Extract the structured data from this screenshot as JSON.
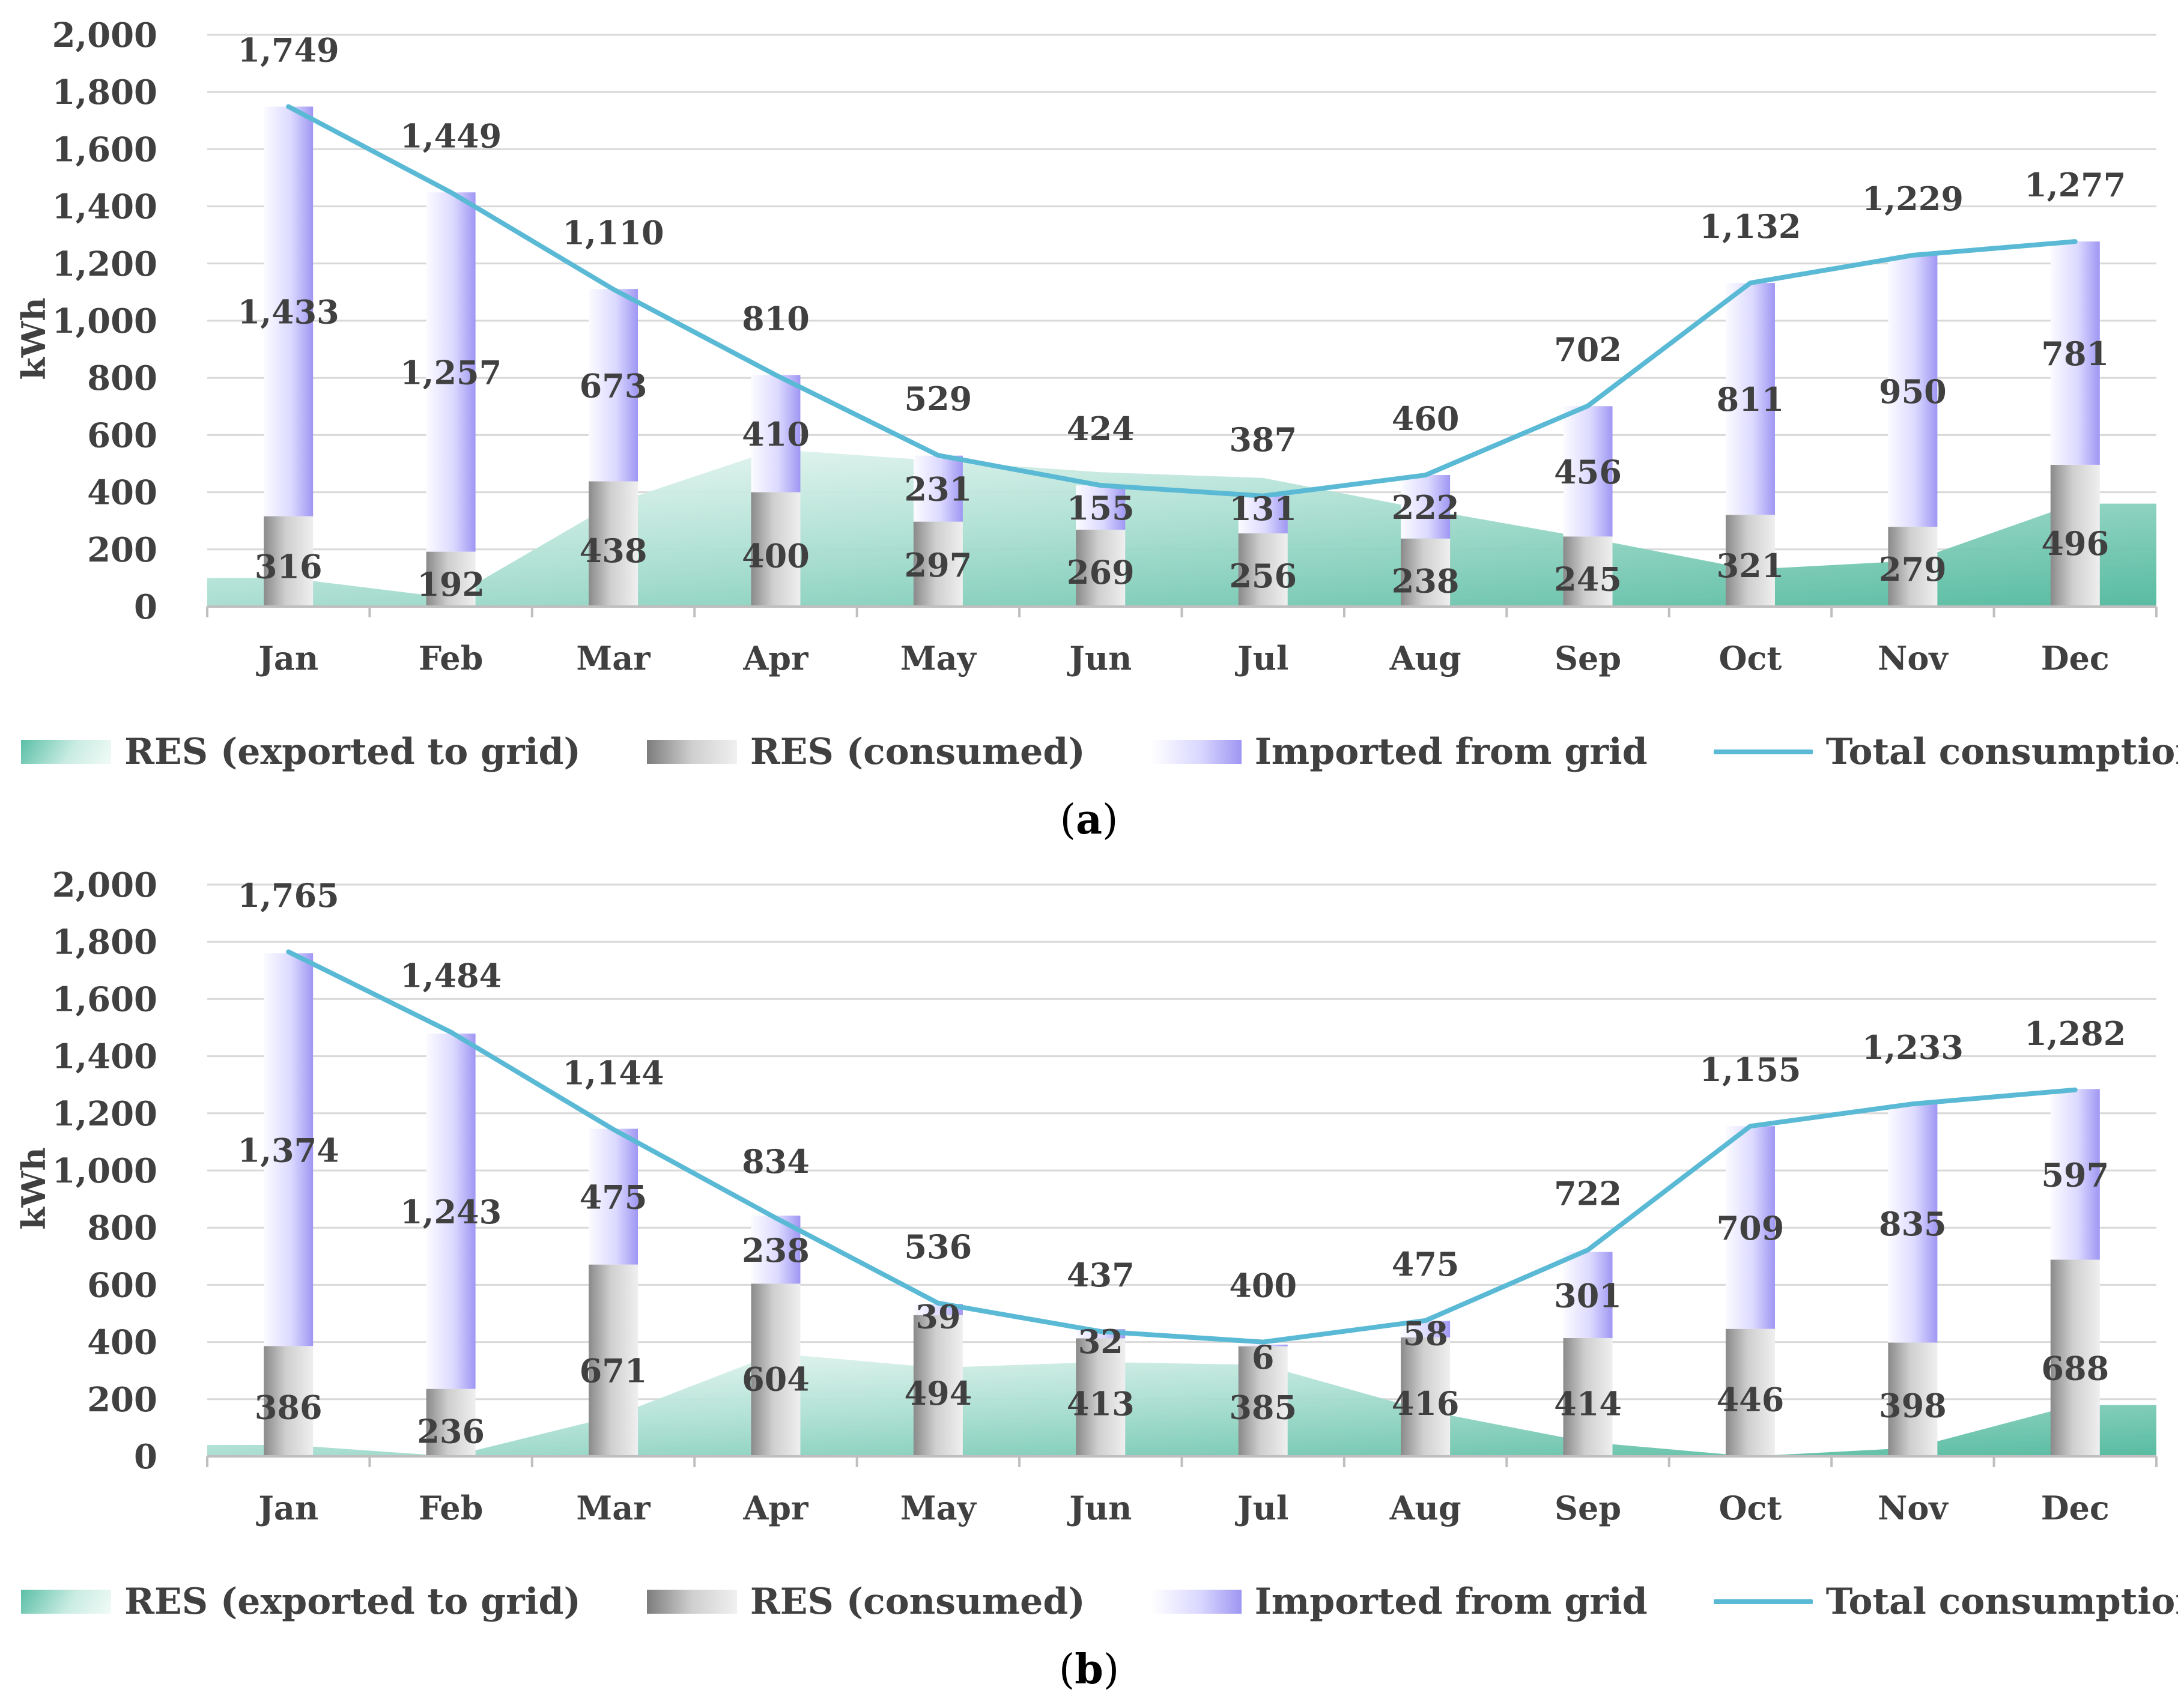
{
  "chart_data": [
    {
      "type": "bar",
      "panel": "(a)",
      "ylabel": "kWh",
      "ylim": [
        0,
        2000
      ],
      "ytick_labels": [
        "0",
        "200",
        "400",
        "600",
        "800",
        "1,000",
        "1,200",
        "1,400",
        "1,600",
        "1,800",
        "2,000"
      ],
      "categories": [
        "Jan",
        "Feb",
        "Mar",
        "Apr",
        "May",
        "Jun",
        "Jul",
        "Aug",
        "Sep",
        "Oct",
        "Nov",
        "Dec"
      ],
      "series": [
        {
          "name": "RES (exported to grid)",
          "kind": "area",
          "values": [
            100,
            30,
            360,
            550,
            510,
            470,
            450,
            340,
            240,
            130,
            160,
            360
          ]
        },
        {
          "name": "RES (consumed)",
          "kind": "stacked-bar",
          "values": [
            316,
            192,
            438,
            400,
            297,
            269,
            256,
            238,
            245,
            321,
            279,
            496
          ]
        },
        {
          "name": "Imported from grid",
          "kind": "stacked-bar",
          "values": [
            1433,
            1257,
            673,
            410,
            231,
            155,
            131,
            222,
            456,
            811,
            950,
            781
          ]
        },
        {
          "name": "Total consumption",
          "kind": "line",
          "values": [
            1749,
            1449,
            1110,
            810,
            529,
            424,
            387,
            460,
            702,
            1132,
            1229,
            1277
          ]
        }
      ],
      "labels": {
        "consumed": [
          "316",
          "192",
          "438",
          "400",
          "297",
          "269",
          "256",
          "238",
          "245",
          "321",
          "279",
          "496"
        ],
        "imported": [
          "1,433",
          "1,257",
          "673",
          "410",
          "231",
          "155",
          "131",
          "222",
          "456",
          "811",
          "950",
          "781"
        ],
        "total": [
          "1,749",
          "1,449",
          "1,110",
          "810",
          "529",
          "424",
          "387",
          "460",
          "702",
          "1,132",
          "1,229",
          "1,277"
        ]
      }
    },
    {
      "type": "bar",
      "panel": "(b)",
      "ylabel": "kWh",
      "ylim": [
        0,
        2000
      ],
      "ytick_labels": [
        "0",
        "200",
        "400",
        "600",
        "800",
        "1,000",
        "1,200",
        "1,400",
        "1,600",
        "1,800",
        "2,000"
      ],
      "categories": [
        "Jan",
        "Feb",
        "Mar",
        "Apr",
        "May",
        "Jun",
        "Jul",
        "Aug",
        "Sep",
        "Oct",
        "Nov",
        "Dec"
      ],
      "series": [
        {
          "name": "RES (exported to grid)",
          "kind": "area",
          "values": [
            40,
            0,
            140,
            360,
            310,
            330,
            320,
            160,
            50,
            0,
            30,
            180
          ]
        },
        {
          "name": "RES (consumed)",
          "kind": "stacked-bar",
          "values": [
            386,
            236,
            671,
            604,
            494,
            413,
            385,
            416,
            414,
            446,
            398,
            688
          ]
        },
        {
          "name": "Imported from grid",
          "kind": "stacked-bar",
          "values": [
            1374,
            1243,
            475,
            238,
            39,
            32,
            6,
            58,
            301,
            709,
            835,
            597
          ]
        },
        {
          "name": "Total consumption",
          "kind": "line",
          "values": [
            1765,
            1484,
            1144,
            834,
            536,
            437,
            400,
            475,
            722,
            1155,
            1233,
            1282
          ]
        }
      ],
      "labels": {
        "consumed": [
          "386",
          "236",
          "671",
          "604",
          "494",
          "413",
          "385",
          "416",
          "414",
          "446",
          "398",
          "688"
        ],
        "imported": [
          "1,374",
          "1,243",
          "475",
          "238",
          "39",
          "32",
          "6",
          "58",
          "301",
          "709",
          "835",
          "597"
        ],
        "total": [
          "1,765",
          "1,484",
          "1,144",
          "834",
          "536",
          "437",
          "400",
          "475",
          "722",
          "1,155",
          "1,233",
          "1,282"
        ]
      }
    }
  ],
  "legend": {
    "exported": "RES (exported to grid)",
    "consumed": "RES (consumed)",
    "imported": "Imported from grid",
    "total": "Total consumption"
  },
  "panels": {
    "a": "a",
    "b": "b"
  },
  "colors": {
    "line": "#5ab9d5",
    "grid": "#d9d9d9",
    "axis": "#bfbfbf",
    "text": "#404040",
    "exported": "#6cc7b0",
    "consumed": "#a6a6a6",
    "imported": "#b9b3fb"
  }
}
